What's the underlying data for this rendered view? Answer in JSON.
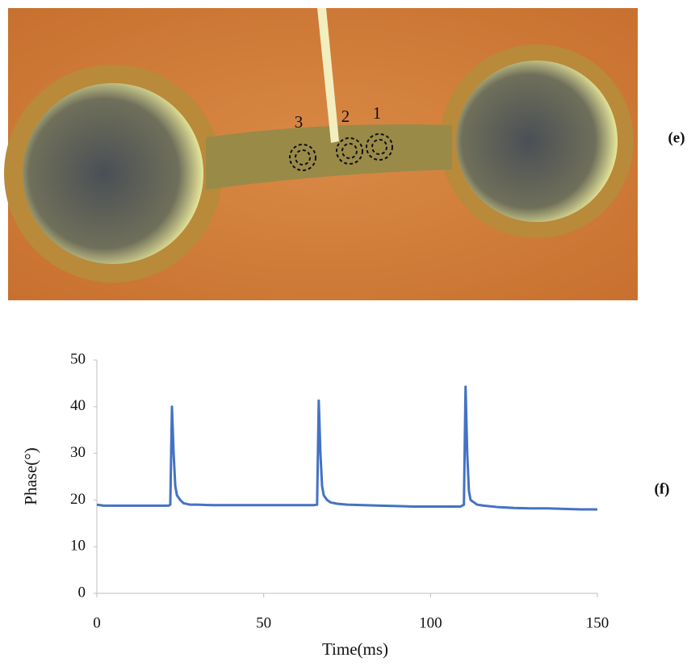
{
  "photo": {
    "markers": [
      "3",
      "2",
      "1"
    ],
    "label": "(e)"
  },
  "chart_data": {
    "type": "line",
    "panel_label": "(f)",
    "x_label": "Time(ms)",
    "y_label": "Phase(°)",
    "x": [
      0,
      2,
      5,
      10,
      15,
      20,
      21.5,
      22,
      22.5,
      23,
      23.5,
      24,
      25,
      26,
      28,
      30,
      35,
      40,
      45,
      50,
      55,
      60,
      65,
      66,
      66.5,
      67,
      67.5,
      68,
      69,
      70,
      72,
      75,
      80,
      85,
      90,
      95,
      100,
      105,
      109,
      110,
      110.5,
      111,
      111.5,
      112,
      114,
      116,
      120,
      125,
      130,
      135,
      140,
      145,
      150
    ],
    "series": [
      {
        "color": "#4472c4",
        "values": [
          19,
          18.8,
          18.8,
          18.8,
          18.8,
          18.8,
          18.8,
          19,
          40,
          30,
          23,
          21,
          20,
          19.3,
          19,
          19,
          18.9,
          18.9,
          18.9,
          18.9,
          18.9,
          18.9,
          18.9,
          19,
          41.3,
          30,
          23,
          21,
          20,
          19.5,
          19.2,
          19,
          18.9,
          18.8,
          18.7,
          18.6,
          18.6,
          18.6,
          18.6,
          19,
          44.3,
          30,
          22,
          20,
          19,
          18.8,
          18.5,
          18.3,
          18.2,
          18.2,
          18.1,
          18,
          18
        ]
      }
    ],
    "xlim": [
      0,
      150
    ],
    "xticks": [
      0,
      50,
      100,
      150
    ],
    "ylim": [
      0,
      50
    ],
    "yticks": [
      0,
      10,
      20,
      30,
      40,
      50
    ],
    "grid": false
  }
}
